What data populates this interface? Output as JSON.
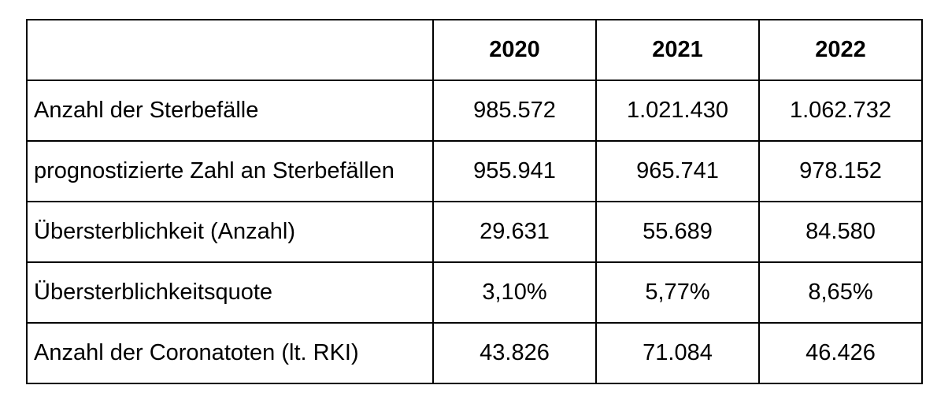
{
  "table": {
    "header": {
      "corner": "",
      "years": [
        "2020",
        "2021",
        "2022"
      ]
    },
    "rows": [
      {
        "label": "Anzahl der Sterbefälle",
        "values": [
          "985.572",
          "1.021.430",
          "1.062.732"
        ]
      },
      {
        "label": "prognostizierte Zahl an Sterbefällen",
        "values": [
          "955.941",
          "965.741",
          "978.152"
        ]
      },
      {
        "label": "Übersterblichkeit (Anzahl)",
        "values": [
          "29.631",
          "55.689",
          "84.580"
        ]
      },
      {
        "label": "Übersterblichkeitsquote",
        "values": [
          "3,10%",
          "5,77%",
          "8,65%"
        ]
      },
      {
        "label": "Anzahl der Coronatoten (lt. RKI)",
        "values": [
          "43.826",
          "71.084",
          "46.426"
        ]
      }
    ]
  }
}
